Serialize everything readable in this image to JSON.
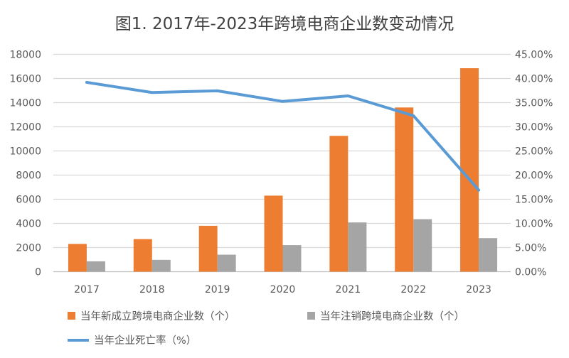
{
  "chart_data": {
    "type": "bar",
    "title": "图1. 2017年-2023年跨境电商企业数变动情况",
    "categories": [
      "2017",
      "2018",
      "2019",
      "2020",
      "2021",
      "2022",
      "2023"
    ],
    "series": [
      {
        "name": "当年新成立跨境电商企业数（个）",
        "type": "bar",
        "axis": "left",
        "color": "#ED7D31",
        "values": [
          2300,
          2700,
          3800,
          6300,
          11250,
          13600,
          16850
        ]
      },
      {
        "name": "当年注销跨境电商企业数（个）",
        "type": "bar",
        "axis": "left",
        "color": "#A5A5A5",
        "values": [
          860,
          980,
          1410,
          2200,
          4080,
          4350,
          2780
        ]
      },
      {
        "name": "当年企业死亡率（%）",
        "type": "line",
        "axis": "right",
        "color": "#5B9BD5",
        "values": [
          39.2,
          37.1,
          37.45,
          35.25,
          36.4,
          32.3,
          16.9
        ]
      }
    ],
    "ylim": [
      0,
      18000
    ],
    "y_ticks": [
      "0",
      "2000",
      "4000",
      "6000",
      "8000",
      "10000",
      "12000",
      "14000",
      "16000",
      "18000"
    ],
    "y2lim": [
      0,
      45
    ],
    "y2_ticks": [
      "0.00%",
      "5.00%",
      "10.00%",
      "15.00%",
      "20.00%",
      "25.00%",
      "30.00%",
      "35.00%",
      "40.00%",
      "45.00%"
    ],
    "grid": true,
    "legend_position": "bottom"
  }
}
